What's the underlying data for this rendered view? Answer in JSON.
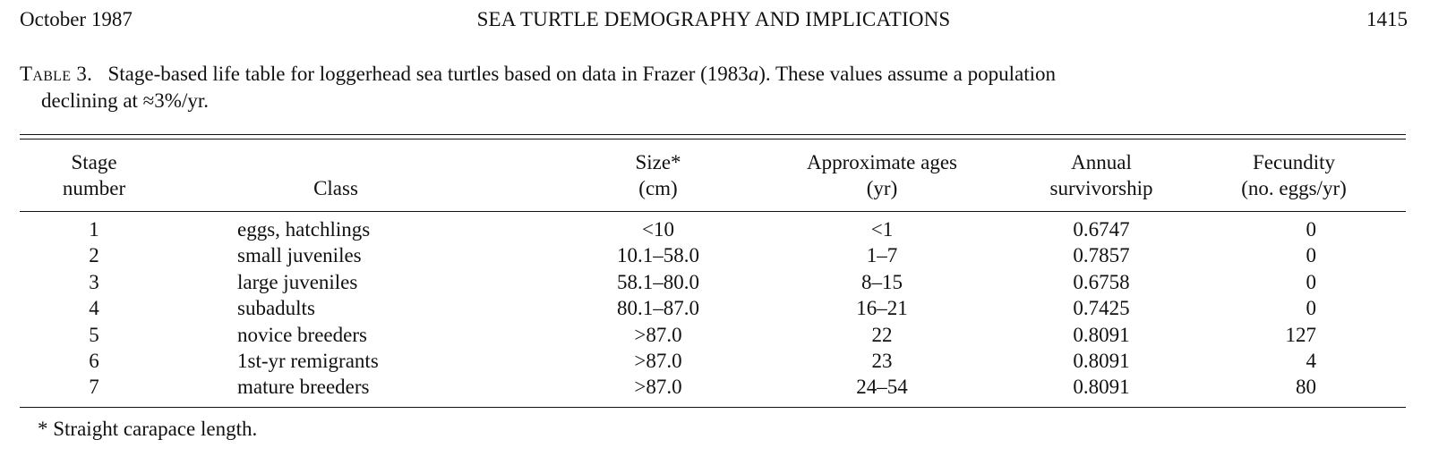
{
  "header": {
    "left": "October 1987",
    "center": "SEA TURTLE DEMOGRAPHY AND IMPLICATIONS",
    "right": "1415"
  },
  "caption": {
    "label": "Table 3.",
    "line1_a": "Stage-based life table for loggerhead sea turtles based on data in Frazer (1983",
    "line1_italic": "a",
    "line1_b": "). These values assume a population",
    "line2": "declining at ≈3%/yr."
  },
  "columns": {
    "stage": [
      "Stage",
      "number"
    ],
    "class": "Class",
    "size": [
      "Size*",
      "(cm)"
    ],
    "ages": [
      "Approximate ages",
      "(yr)"
    ],
    "survivorship": [
      "Annual",
      "survivorship"
    ],
    "fecundity": [
      "Fecundity",
      "(no. eggs/yr)"
    ]
  },
  "rows": [
    {
      "stage": "1",
      "class": "eggs, hatchlings",
      "size": "<10",
      "ages": "<1",
      "survivorship": "0.6747",
      "fecundity": "0"
    },
    {
      "stage": "2",
      "class": "small juveniles",
      "size": "10.1–58.0",
      "ages": "1–7",
      "survivorship": "0.7857",
      "fecundity": "0"
    },
    {
      "stage": "3",
      "class": "large juveniles",
      "size": "58.1–80.0",
      "ages": "8–15",
      "survivorship": "0.6758",
      "fecundity": "0"
    },
    {
      "stage": "4",
      "class": "subadults",
      "size": "80.1–87.0",
      "ages": "16–21",
      "survivorship": "0.7425",
      "fecundity": "0"
    },
    {
      "stage": "5",
      "class": "novice breeders",
      "size": ">87.0",
      "ages": "22",
      "survivorship": "0.8091",
      "fecundity": "127"
    },
    {
      "stage": "6",
      "class": "1st-yr remigrants",
      "size": ">87.0",
      "ages": "23",
      "survivorship": "0.8091",
      "fecundity": "4"
    },
    {
      "stage": "7",
      "class": "mature breeders",
      "size": ">87.0",
      "ages": "24–54",
      "survivorship": "0.8091",
      "fecundity": "80"
    }
  ],
  "footnote": "* Straight carapace length."
}
